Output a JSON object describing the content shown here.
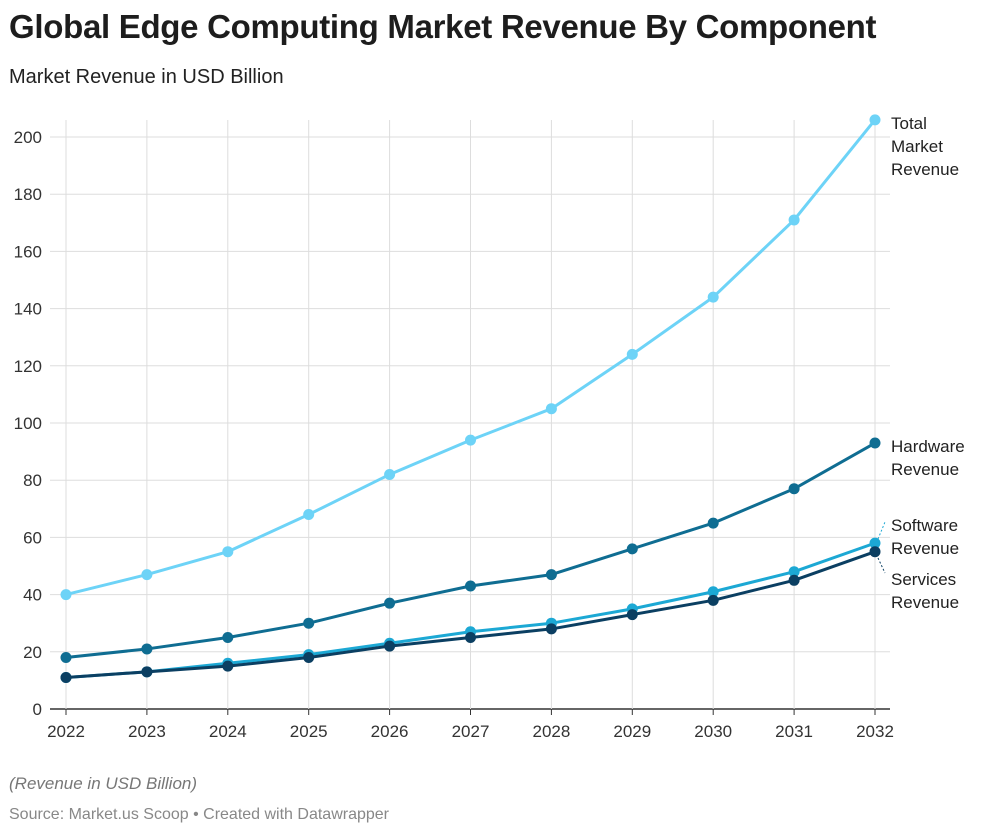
{
  "title": "Global Edge Computing Market Revenue By Component",
  "subtitle": "Market Revenue in USD Billion",
  "note": "(Revenue in USD Billion)",
  "source": "Source: Market.us Scoop • Created with Datawrapper",
  "chart_data": {
    "type": "line",
    "x": [
      2022,
      2023,
      2024,
      2025,
      2026,
      2027,
      2028,
      2029,
      2030,
      2031,
      2032
    ],
    "ylim": [
      0,
      200
    ],
    "yticks": [
      0,
      20,
      40,
      60,
      80,
      100,
      120,
      140,
      160,
      180,
      200
    ],
    "grid": true,
    "legend": "direct labels at right",
    "series": [
      {
        "name": "Total Market Revenue",
        "color": "#6dd3f7",
        "values": [
          40,
          47,
          55,
          68,
          82,
          94,
          105,
          124,
          144,
          171,
          206
        ]
      },
      {
        "name": "Hardware Revenue",
        "color": "#0f6d92",
        "values": [
          18,
          21,
          25,
          30,
          37,
          43,
          47,
          56,
          65,
          77,
          93
        ]
      },
      {
        "name": "Software Revenue",
        "color": "#1ca8d4",
        "values": [
          11,
          13,
          16,
          19,
          23,
          27,
          30,
          35,
          41,
          48,
          58
        ]
      },
      {
        "name": "Services Revenue",
        "color": "#0b3f62",
        "values": [
          11,
          13,
          15,
          18,
          22,
          25,
          28,
          33,
          38,
          45,
          55
        ]
      }
    ]
  }
}
